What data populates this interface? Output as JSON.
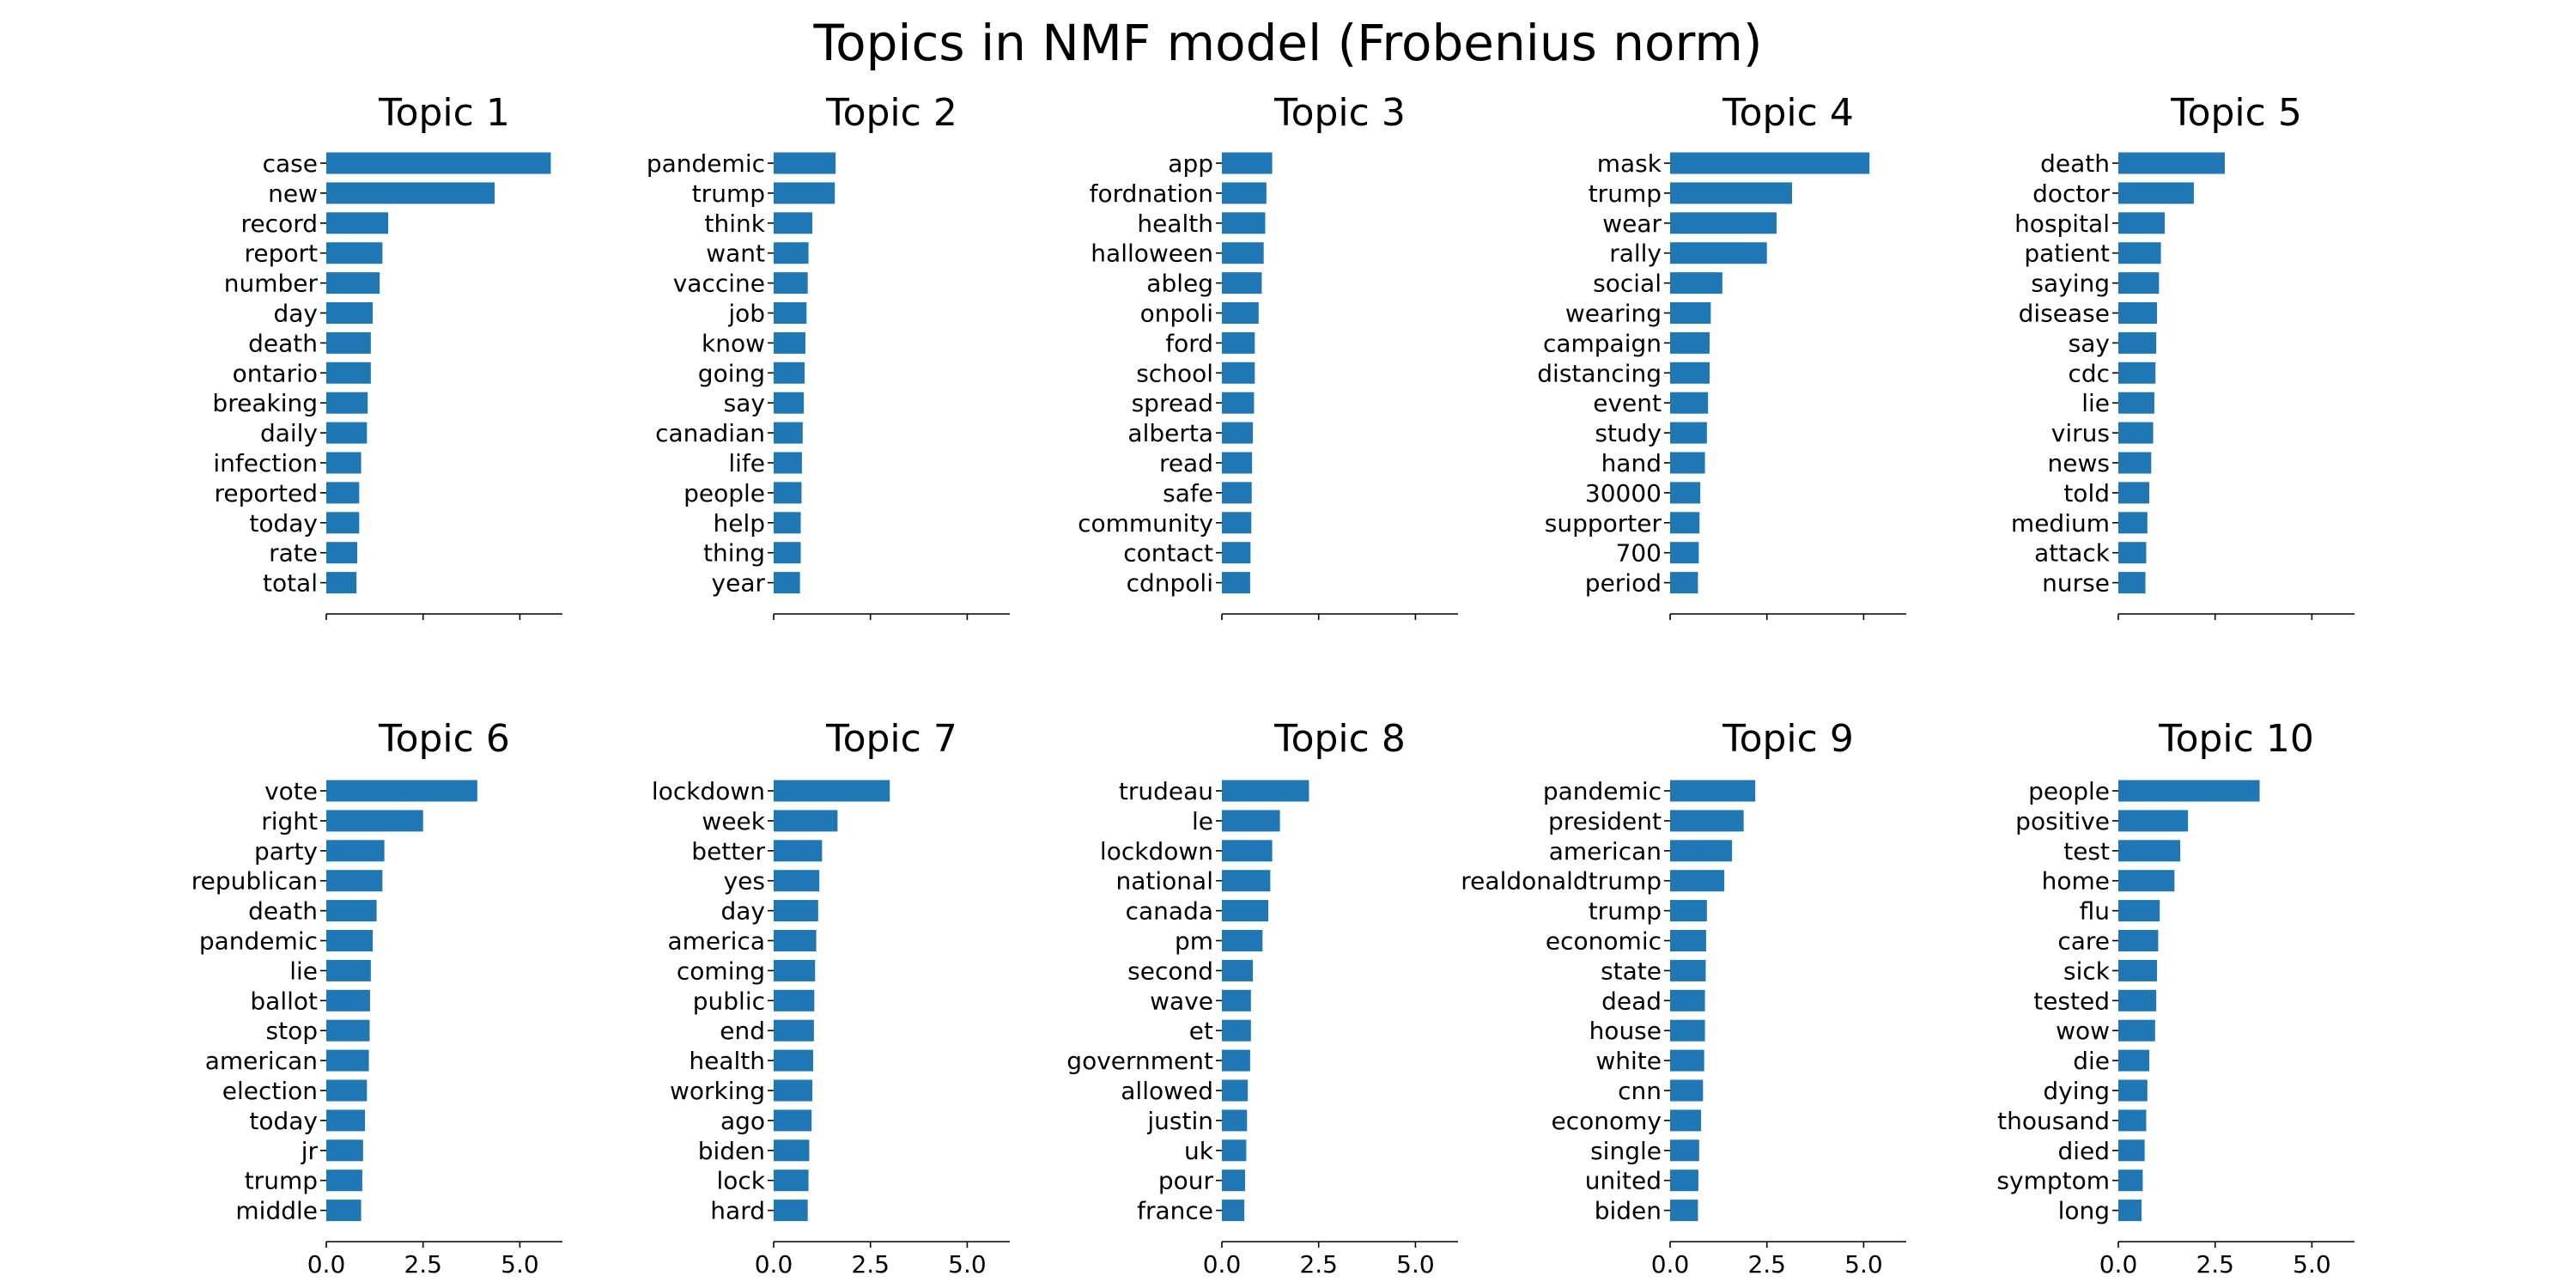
{
  "title": "Topics in NMF model (Frobenius norm)",
  "colors": {
    "bar": "#1f77b4",
    "axis": "#000000",
    "background": "#ffffff"
  },
  "chart_data": [
    {
      "type": "bar",
      "orientation": "horizontal",
      "title": "Topic 1",
      "categories": [
        "case",
        "new",
        "record",
        "report",
        "number",
        "day",
        "death",
        "ontario",
        "breaking",
        "daily",
        "infection",
        "reported",
        "today",
        "rate",
        "total"
      ],
      "values": [
        5.8,
        4.35,
        1.6,
        1.45,
        1.38,
        1.2,
        1.15,
        1.15,
        1.07,
        1.05,
        0.9,
        0.85,
        0.85,
        0.8,
        0.78
      ],
      "xlim": [
        0,
        6.1
      ],
      "xticks": [
        0.0,
        2.5,
        5.0
      ],
      "xtick_labels": [
        "",
        "",
        ""
      ]
    },
    {
      "type": "bar",
      "orientation": "horizontal",
      "title": "Topic 2",
      "categories": [
        "pandemic",
        "trump",
        "think",
        "want",
        "vaccine",
        "job",
        "know",
        "going",
        "say",
        "canadian",
        "life",
        "people",
        "help",
        "thing",
        "year"
      ],
      "values": [
        1.6,
        1.58,
        1.0,
        0.9,
        0.88,
        0.85,
        0.82,
        0.8,
        0.78,
        0.75,
        0.73,
        0.72,
        0.7,
        0.7,
        0.68
      ],
      "xlim": [
        0,
        6.1
      ],
      "xticks": [
        0.0,
        2.5,
        5.0
      ],
      "xtick_labels": [
        "",
        "",
        ""
      ]
    },
    {
      "type": "bar",
      "orientation": "horizontal",
      "title": "Topic 3",
      "categories": [
        "app",
        "fordnation",
        "health",
        "halloween",
        "ableg",
        "onpoli",
        "ford",
        "school",
        "spread",
        "alberta",
        "read",
        "safe",
        "community",
        "contact",
        "cdnpoli"
      ],
      "values": [
        1.3,
        1.15,
        1.12,
        1.08,
        1.03,
        0.95,
        0.85,
        0.85,
        0.83,
        0.8,
        0.78,
        0.77,
        0.76,
        0.74,
        0.73
      ],
      "xlim": [
        0,
        6.1
      ],
      "xticks": [
        0.0,
        2.5,
        5.0
      ],
      "xtick_labels": [
        "",
        "",
        ""
      ]
    },
    {
      "type": "bar",
      "orientation": "horizontal",
      "title": "Topic 4",
      "categories": [
        "mask",
        "trump",
        "wear",
        "rally",
        "social",
        "wearing",
        "campaign",
        "distancing",
        "event",
        "study",
        "hand",
        "30000",
        "supporter",
        "700",
        "period"
      ],
      "values": [
        5.15,
        3.15,
        2.75,
        2.5,
        1.35,
        1.05,
        1.02,
        1.02,
        0.98,
        0.95,
        0.9,
        0.78,
        0.76,
        0.74,
        0.72
      ],
      "xlim": [
        0,
        6.1
      ],
      "xticks": [
        0.0,
        2.5,
        5.0
      ],
      "xtick_labels": [
        "",
        "",
        ""
      ]
    },
    {
      "type": "bar",
      "orientation": "horizontal",
      "title": "Topic 5",
      "categories": [
        "death",
        "doctor",
        "hospital",
        "patient",
        "saying",
        "disease",
        "say",
        "cdc",
        "lie",
        "virus",
        "news",
        "told",
        "medium",
        "attack",
        "nurse"
      ],
      "values": [
        2.75,
        1.95,
        1.2,
        1.1,
        1.05,
        1.0,
        0.98,
        0.96,
        0.93,
        0.9,
        0.85,
        0.8,
        0.75,
        0.72,
        0.7
      ],
      "xlim": [
        0,
        6.1
      ],
      "xticks": [
        0.0,
        2.5,
        5.0
      ],
      "xtick_labels": [
        "",
        "",
        ""
      ]
    },
    {
      "type": "bar",
      "orientation": "horizontal",
      "title": "Topic 6",
      "categories": [
        "vote",
        "right",
        "party",
        "republican",
        "death",
        "pandemic",
        "lie",
        "ballot",
        "stop",
        "american",
        "election",
        "today",
        "jr",
        "trump",
        "middle"
      ],
      "values": [
        3.9,
        2.5,
        1.5,
        1.45,
        1.3,
        1.2,
        1.15,
        1.13,
        1.12,
        1.1,
        1.05,
        1.0,
        0.95,
        0.93,
        0.9
      ],
      "xlim": [
        0,
        6.1
      ],
      "xticks": [
        0.0,
        2.5,
        5.0
      ],
      "xtick_labels": [
        "0.0",
        "2.5",
        "5.0"
      ]
    },
    {
      "type": "bar",
      "orientation": "horizontal",
      "title": "Topic 7",
      "categories": [
        "lockdown",
        "week",
        "better",
        "yes",
        "day",
        "america",
        "coming",
        "public",
        "end",
        "health",
        "working",
        "ago",
        "biden",
        "lock",
        "hard"
      ],
      "values": [
        3.0,
        1.65,
        1.25,
        1.18,
        1.15,
        1.1,
        1.07,
        1.05,
        1.04,
        1.02,
        1.0,
        0.98,
        0.92,
        0.9,
        0.88
      ],
      "xlim": [
        0,
        6.1
      ],
      "xticks": [
        0.0,
        2.5,
        5.0
      ],
      "xtick_labels": [
        "0.0",
        "2.5",
        "5.0"
      ]
    },
    {
      "type": "bar",
      "orientation": "horizontal",
      "title": "Topic 8",
      "categories": [
        "trudeau",
        "le",
        "lockdown",
        "national",
        "canada",
        "pm",
        "second",
        "wave",
        "et",
        "government",
        "allowed",
        "justin",
        "uk",
        "pour",
        "france"
      ],
      "values": [
        2.25,
        1.5,
        1.3,
        1.25,
        1.2,
        1.05,
        0.8,
        0.75,
        0.75,
        0.73,
        0.67,
        0.65,
        0.63,
        0.6,
        0.58
      ],
      "xlim": [
        0,
        6.1
      ],
      "xticks": [
        0.0,
        2.5,
        5.0
      ],
      "xtick_labels": [
        "0.0",
        "2.5",
        "5.0"
      ]
    },
    {
      "type": "bar",
      "orientation": "horizontal",
      "title": "Topic 9",
      "categories": [
        "pandemic",
        "president",
        "american",
        "realdonaldtrump",
        "trump",
        "economic",
        "state",
        "dead",
        "house",
        "white",
        "cnn",
        "economy",
        "single",
        "united",
        "biden"
      ],
      "values": [
        2.2,
        1.9,
        1.6,
        1.4,
        0.95,
        0.93,
        0.92,
        0.9,
        0.9,
        0.88,
        0.85,
        0.8,
        0.75,
        0.73,
        0.72
      ],
      "xlim": [
        0,
        6.1
      ],
      "xticks": [
        0.0,
        2.5,
        5.0
      ],
      "xtick_labels": [
        "0.0",
        "2.5",
        "5.0"
      ]
    },
    {
      "type": "bar",
      "orientation": "horizontal",
      "title": "Topic 10",
      "categories": [
        "people",
        "positive",
        "test",
        "home",
        "flu",
        "care",
        "sick",
        "tested",
        "wow",
        "die",
        "dying",
        "thousand",
        "died",
        "symptom",
        "long"
      ],
      "values": [
        3.65,
        1.8,
        1.6,
        1.45,
        1.07,
        1.03,
        1.0,
        0.98,
        0.95,
        0.8,
        0.75,
        0.72,
        0.68,
        0.63,
        0.6
      ],
      "xlim": [
        0,
        6.1
      ],
      "xticks": [
        0.0,
        2.5,
        5.0
      ],
      "xtick_labels": [
        "0.0",
        "2.5",
        "5.0"
      ]
    }
  ]
}
